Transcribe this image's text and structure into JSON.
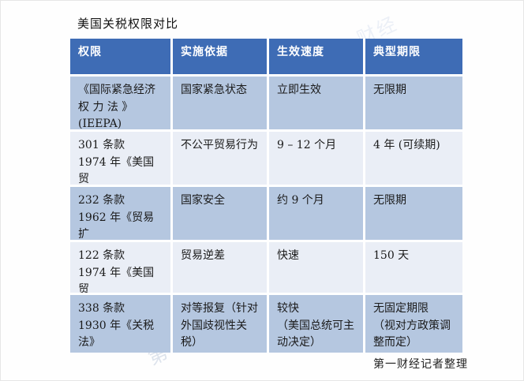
{
  "title": "美国关税权限对比",
  "footer": "第一财经记者整理",
  "watermark": "第一财经",
  "colors": {
    "header_bg": "#3e6cb5",
    "row_dark_bg": "#b5c7e0",
    "row_light_bg": "#eaeef6",
    "header_text": "#ffffff",
    "body_text": "#1a1a1a"
  },
  "table": {
    "headers": [
      "权限",
      "实施依据",
      "生效速度",
      "典型期限"
    ],
    "rows": [
      {
        "authority": "《国际紧急经济\n权 力 法 》\n(IEEPA)",
        "basis": "国家紧急状态",
        "speed": "立即生效",
        "duration": "无限期"
      },
      {
        "authority": "301 条款\n1974 年《美国贸\n易法》",
        "basis": "不公平贸易行为",
        "speed": "9 – 12 个月",
        "duration": "4 年 (可续期)"
      },
      {
        "authority": "232 条款\n1962 年《贸易扩\n张法》",
        "basis": "国家安全",
        "speed": "约 9 个月",
        "duration": "无限期"
      },
      {
        "authority": "122 条款\n1974 年《美国贸\n易法》",
        "basis": "贸易逆差",
        "speed": "快速",
        "duration": "150 天"
      },
      {
        "authority": "338 条款\n1930 年《关税\n法》",
        "basis": "对等报复（针对\n外国歧视性关\n税）",
        "speed": "较快\n（美国总统可主\n动决定）",
        "duration": "无固定期限\n（视对方政策调\n整而定）"
      }
    ]
  }
}
